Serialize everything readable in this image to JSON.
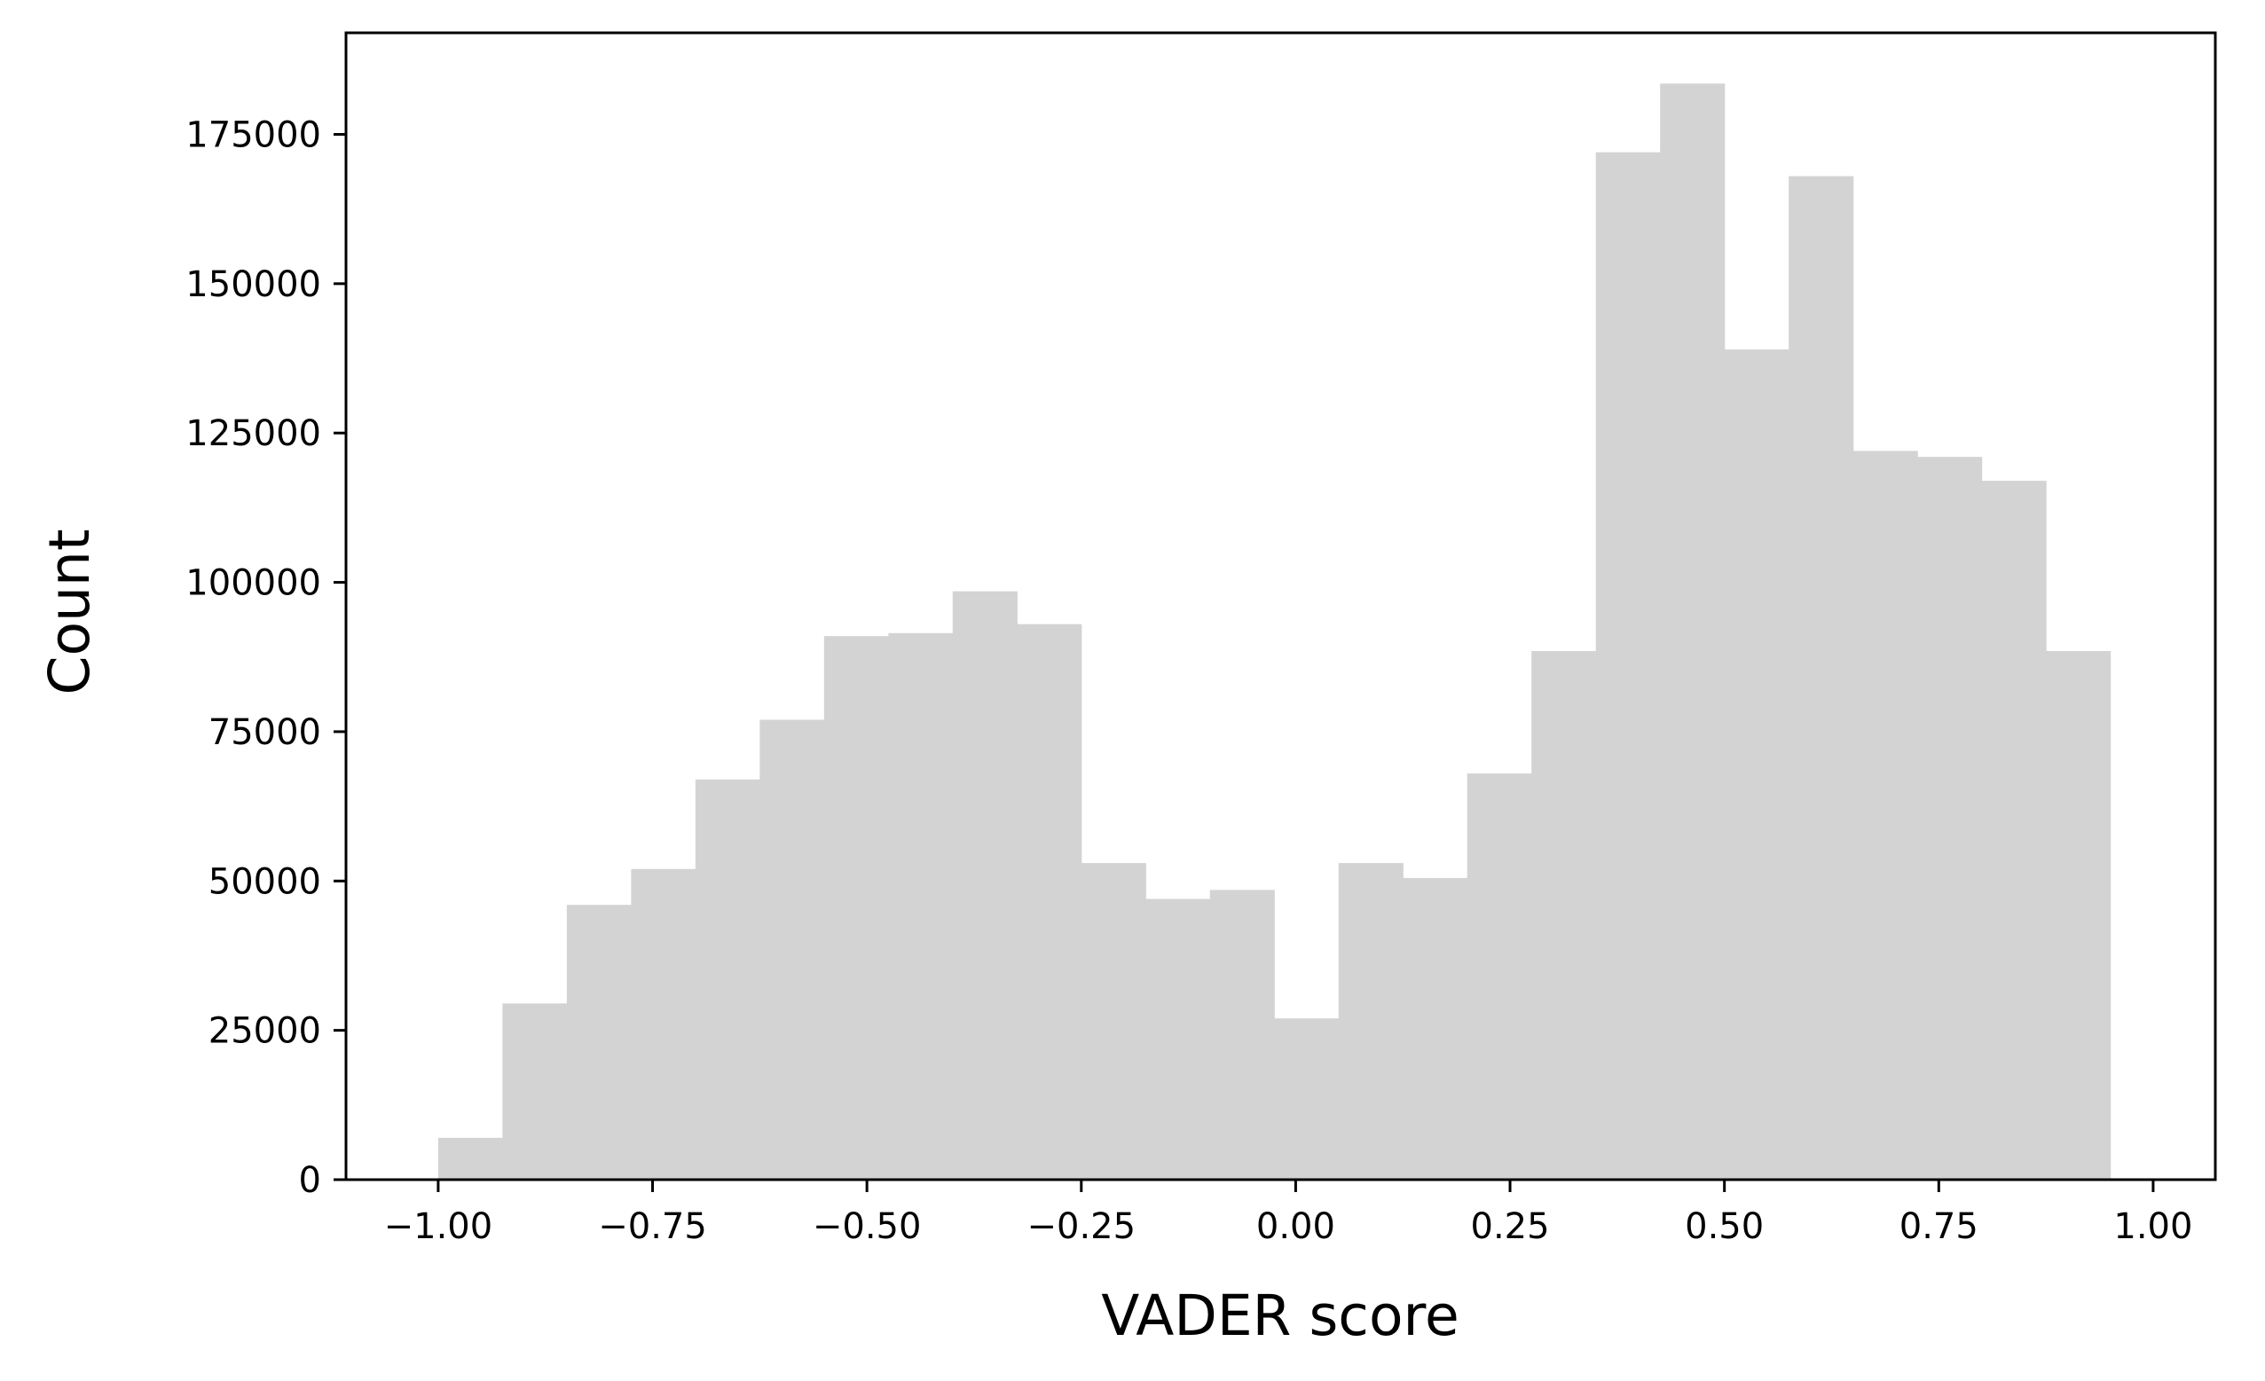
{
  "chart_data": {
    "type": "bar",
    "subtype": "histogram",
    "title": "",
    "xlabel": "VADER score",
    "ylabel": "Count",
    "xlim": [
      -1.1075,
      1.0725
    ],
    "ylim": [
      0,
      192000
    ],
    "grid": false,
    "legend": "none",
    "bar_color": "#d3d3d3",
    "bin_edges": [
      -1.0,
      -0.925,
      -0.85,
      -0.775,
      -0.7,
      -0.625,
      -0.55,
      -0.475,
      -0.4,
      -0.325,
      -0.25,
      -0.175,
      -0.1,
      -0.025,
      0.05,
      0.125,
      0.2,
      0.275,
      0.35,
      0.425,
      0.5,
      0.575,
      0.65,
      0.725,
      0.8,
      0.875,
      0.95
    ],
    "values": [
      7000,
      29500,
      46000,
      52000,
      67000,
      77000,
      91000,
      91500,
      98500,
      93000,
      53000,
      47000,
      48500,
      27000,
      53000,
      50500,
      68000,
      88500,
      172000,
      183500,
      139000,
      168000,
      122000,
      121000,
      117000,
      88500
    ],
    "xticks": [
      -1.0,
      -0.75,
      -0.5,
      -0.25,
      0.0,
      0.25,
      0.5,
      0.75,
      1.0
    ],
    "xtick_labels": [
      "−1.00",
      "−0.75",
      "−0.50",
      "−0.25",
      "0.00",
      "0.25",
      "0.50",
      "0.75",
      "1.00"
    ],
    "yticks": [
      0,
      25000,
      50000,
      75000,
      100000,
      125000,
      150000,
      175000
    ],
    "ytick_labels": [
      "0",
      "25000",
      "50000",
      "75000",
      "100000",
      "125000",
      "150000",
      "175000"
    ]
  }
}
